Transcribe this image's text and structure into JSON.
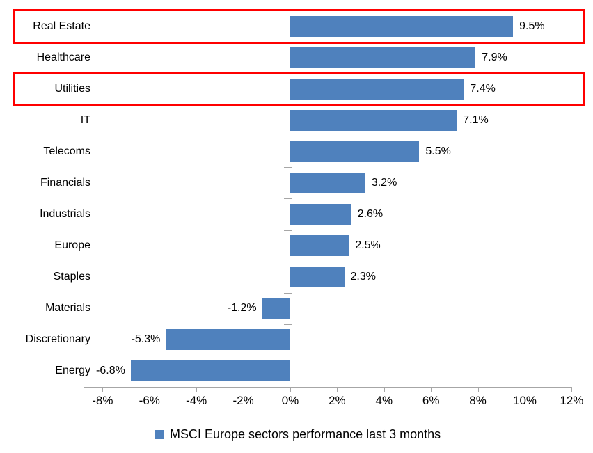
{
  "chart_data": {
    "type": "bar",
    "orientation": "horizontal",
    "title": "",
    "categories": [
      "Real Estate",
      "Healthcare",
      "Utilities",
      "IT",
      "Telecoms",
      "Financials",
      "Industrials",
      "Europe",
      "Staples",
      "Materials",
      "Discretionary",
      "Energy"
    ],
    "values": [
      9.5,
      7.9,
      7.4,
      7.1,
      5.5,
      3.2,
      2.6,
      2.5,
      2.3,
      -1.2,
      -5.3,
      -6.8
    ],
    "data_labels": [
      "9.5%",
      "7.9%",
      "7.4%",
      "7.1%",
      "5.5%",
      "3.2%",
      "2.6%",
      "2.5%",
      "2.3%",
      "-1.2%",
      "-5.3%",
      "-6.8%"
    ],
    "x_axis": {
      "min": -8,
      "max": 12,
      "step": 2,
      "tick_labels": [
        "-8%",
        "-6%",
        "-4%",
        "-2%",
        "0%",
        "2%",
        "4%",
        "6%",
        "8%",
        "10%",
        "12%"
      ]
    },
    "legend": {
      "position": "bottom",
      "label": "MSCI Europe sectors performance last 3 months"
    },
    "highlighted_categories": [
      "Real Estate",
      "Utilities"
    ],
    "grid": false,
    "colors": {
      "bar": "#4f81bd",
      "highlight": "#ff0000",
      "axis": "#a6a6a6",
      "text": "#000000",
      "background": "#ffffff"
    }
  }
}
